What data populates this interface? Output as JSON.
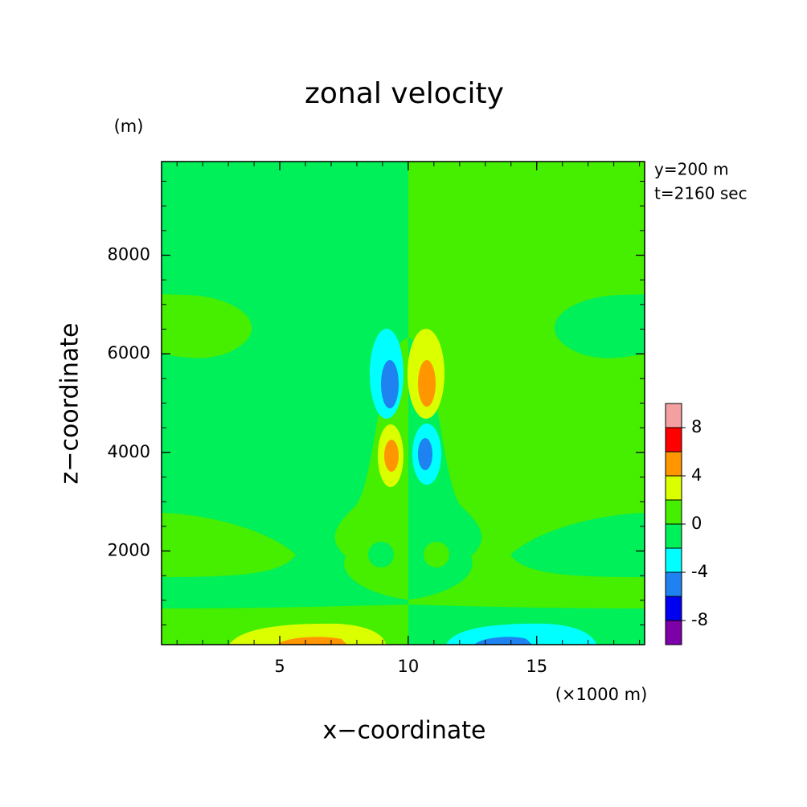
{
  "chart_data": {
    "type": "contour",
    "title": "zonal velocity",
    "xlabel": "x−coordinate",
    "ylabel": "z−coordinate",
    "xunit": "(×1000 m)",
    "yunit": "(m)",
    "annotations": [
      "y=200 m",
      "t=2160 sec"
    ],
    "xlim": [
      0.4,
      19.2
    ],
    "xticks": [
      5,
      10,
      15
    ],
    "ylim": [
      100,
      9900
    ],
    "yticks": [
      2000,
      4000,
      6000,
      8000
    ],
    "levels": [
      -10,
      -8,
      -6,
      -4,
      -2,
      0,
      2,
      4,
      6,
      8,
      10
    ],
    "colors": [
      "#7d00a8",
      "#0000f0",
      "#1e82f0",
      "#00ffff",
      "#00f05a",
      "#46ee00",
      "#dcff00",
      "#ff9600",
      "#ff0000",
      "#f5a0a0"
    ],
    "colorbar_ticks": [
      -8,
      -4,
      0,
      4,
      8
    ]
  }
}
